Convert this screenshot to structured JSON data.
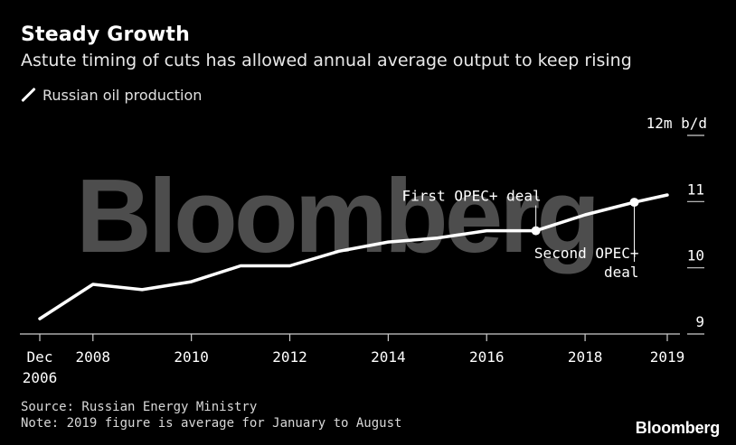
{
  "header": {
    "title": "Steady Growth",
    "subtitle": "Astute timing of cuts has allowed annual average output to keep rising"
  },
  "legend": {
    "label": "Russian oil production",
    "color": "#ffffff"
  },
  "watermark": "Bloomberg",
  "footer": {
    "source": "Source: Russian Energy Ministry",
    "note": "Note: 2019 figure is average for January to August",
    "brand": "Bloomberg"
  },
  "colors": {
    "background": "#000000",
    "line": "#ffffff",
    "watermark": "#4d4d4d",
    "axis": "#cccccc"
  },
  "chart_data": {
    "type": "line",
    "title": "Steady Growth",
    "subtitle": "Astute timing of cuts has allowed annual average output to keep rising",
    "ylabel": "",
    "y_unit": "12m b/d",
    "ylim": [
      9,
      12
    ],
    "y_ticks": [
      {
        "value": 9,
        "label": "9"
      },
      {
        "value": 10,
        "label": "10"
      },
      {
        "value": 11,
        "label": "11"
      },
      {
        "value": 12,
        "label": "12m b/d"
      }
    ],
    "xlim": [
      2006.92,
      2019.67
    ],
    "x_ticks": [
      {
        "value": 2006.92,
        "label": [
          "Dec",
          "2006"
        ]
      },
      {
        "value": 2008,
        "label": [
          "2008"
        ]
      },
      {
        "value": 2010,
        "label": [
          "2010"
        ]
      },
      {
        "value": 2012,
        "label": [
          "2012"
        ]
      },
      {
        "value": 2014,
        "label": [
          "2014"
        ]
      },
      {
        "value": 2016,
        "label": [
          "2016"
        ]
      },
      {
        "value": 2018,
        "label": [
          "2018"
        ]
      },
      {
        "value": 2019.67,
        "label": [
          "2019"
        ]
      }
    ],
    "series": [
      {
        "name": "Russian oil production",
        "x": [
          2006.92,
          2008,
          2009,
          2010,
          2011,
          2012,
          2013,
          2014,
          2015,
          2016,
          2017,
          2018,
          2019,
          2019.67
        ],
        "y": [
          9.23,
          9.75,
          9.67,
          9.79,
          10.03,
          10.03,
          10.25,
          10.39,
          10.45,
          10.56,
          10.56,
          10.8,
          10.99,
          11.1
        ]
      }
    ],
    "grid": false,
    "legend_position": "top-left",
    "annotations": [
      {
        "label": "First OPEC+ deal",
        "x": 2017,
        "y": 10.56,
        "placement": "above"
      },
      {
        "label": "Second OPEC+ deal",
        "lines": [
          "Second OPEC+",
          "deal"
        ],
        "x": 2019,
        "y": 10.99,
        "placement": "below"
      }
    ]
  }
}
